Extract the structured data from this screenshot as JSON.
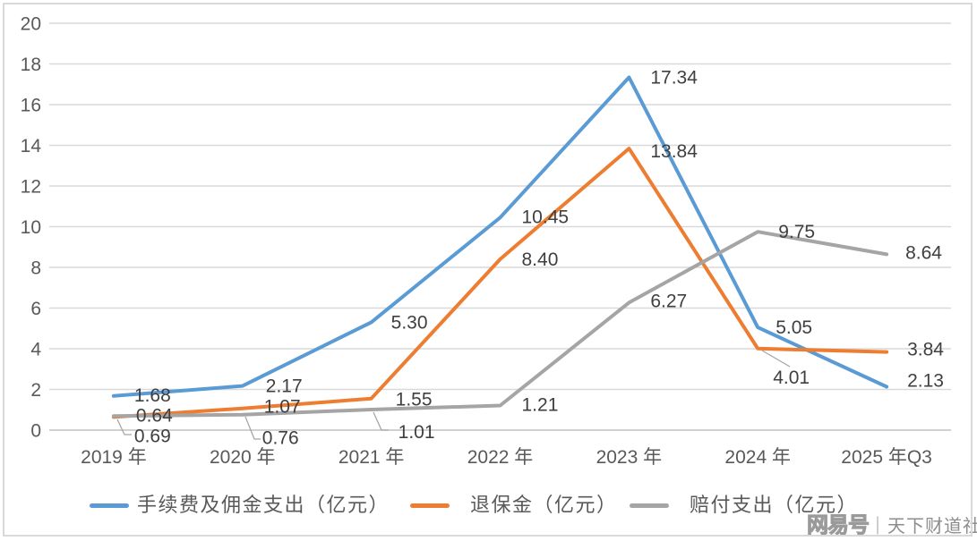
{
  "chart_data": {
    "type": "line",
    "categories": [
      "2019 年",
      "2020 年",
      "2021 年",
      "2022 年",
      "2023 年",
      "2024 年",
      "2025 年Q3"
    ],
    "series": [
      {
        "name": "手续费及佣金支出（亿元）",
        "color": "#5B9BD5",
        "values": [
          1.68,
          2.17,
          5.3,
          10.45,
          17.34,
          5.05,
          2.13
        ]
      },
      {
        "name": "退保金（亿元）",
        "color": "#ED7D31",
        "values": [
          0.64,
          1.07,
          1.55,
          8.4,
          13.84,
          4.01,
          3.84
        ]
      },
      {
        "name": "赔付支出（亿元）",
        "color": "#A5A5A5",
        "values": [
          0.69,
          0.76,
          1.01,
          1.21,
          6.27,
          9.75,
          8.64
        ]
      }
    ],
    "title": "",
    "xlabel": "",
    "ylabel": "",
    "ylim": [
      0,
      20
    ],
    "yticks": [
      20,
      18,
      16,
      14,
      12,
      10,
      8,
      6,
      4,
      2,
      0
    ],
    "grid": true,
    "data_labels": true,
    "legend_position": "bottom",
    "colors": {
      "gridline": "#d9d9d9",
      "axis_line": "#c2c2c2",
      "tick_text": "#595959",
      "data_label_text": "#3f3f3f",
      "leader_line": "#a6a6a6"
    }
  },
  "watermark": {
    "logo": "网易号",
    "suffix": "｜天下财道社"
  }
}
